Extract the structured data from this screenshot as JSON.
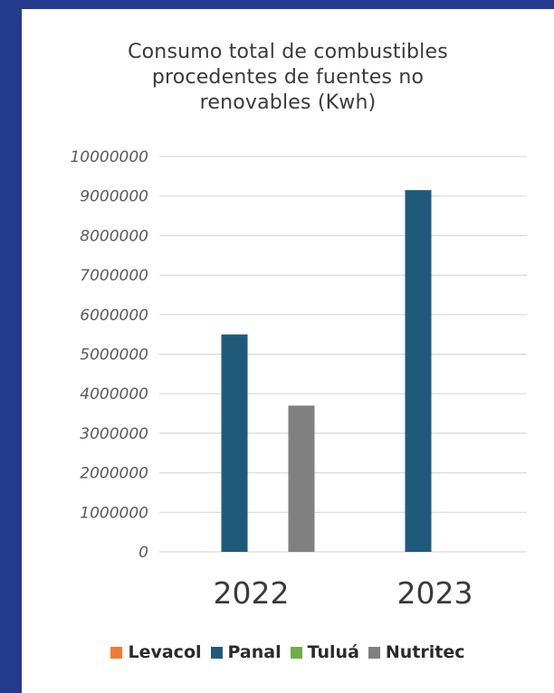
{
  "colors": {
    "frame": "#243a8c",
    "card": "#ffffff",
    "gridline": "#d9d9d9",
    "tick_text": "#595959"
  },
  "chart_data": {
    "type": "bar",
    "title_lines": [
      "Consumo total de combustibles",
      "procedentes de fuentes no",
      "renovables (Kwh)"
    ],
    "categories": [
      "2022",
      "2023"
    ],
    "series": [
      {
        "name": "Levacol",
        "color": "#ed7d31",
        "values": [
          0,
          0
        ]
      },
      {
        "name": "Panal",
        "color": "#1f5a7a",
        "values": [
          5500000,
          9150000
        ]
      },
      {
        "name": "Tuluá",
        "color": "#70ad47",
        "values": [
          0,
          0
        ]
      },
      {
        "name": "Nutritec",
        "color": "#808080",
        "values": [
          3700000,
          0
        ]
      }
    ],
    "y_ticks": [
      "0",
      "1000000",
      "2000000",
      "3000000",
      "4000000",
      "5000000",
      "6000000",
      "7000000",
      "8000000",
      "9000000",
      "10000000"
    ],
    "ylim": [
      0,
      10000000
    ],
    "xlabel": "",
    "ylabel": "",
    "grid": true,
    "legend_position": "bottom"
  }
}
